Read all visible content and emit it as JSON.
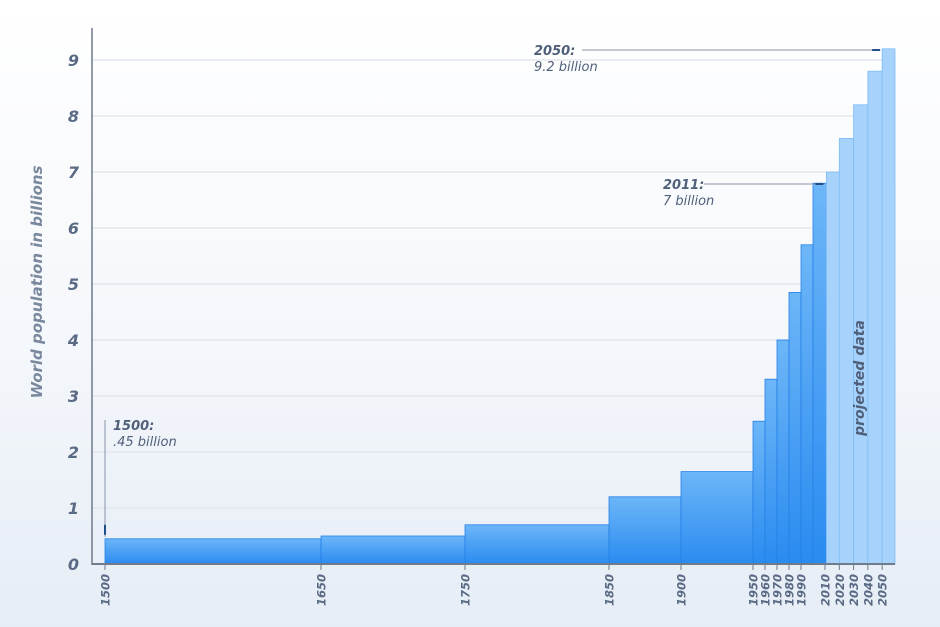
{
  "chart_data": {
    "type": "bar",
    "title": "",
    "ylabel": "World population in billions",
    "ylim": [
      0,
      9.5
    ],
    "grid": true,
    "y_ticks": [
      0,
      1,
      2,
      3,
      4,
      5,
      6,
      7,
      8,
      9
    ],
    "x_ticks": [
      1500,
      1650,
      1750,
      1850,
      1900,
      1950,
      1960,
      1970,
      1980,
      1990,
      2010,
      2020,
      2030,
      2040,
      2050
    ],
    "x_range": [
      1491,
      2059
    ],
    "series": [
      {
        "bars": [
          {
            "start": 1500,
            "end": 1650,
            "value": 0.45
          },
          {
            "start": 1650,
            "end": 1750,
            "value": 0.5
          },
          {
            "start": 1750,
            "end": 1850,
            "value": 0.7
          },
          {
            "start": 1850,
            "end": 1900,
            "value": 1.2
          },
          {
            "start": 1900,
            "end": 1950,
            "value": 1.65
          },
          {
            "start": 1950,
            "end": 1960,
            "value": 2.55
          },
          {
            "start": 1960,
            "end": 1970,
            "value": 3.3
          },
          {
            "start": 1970,
            "end": 1980,
            "value": 4.0
          },
          {
            "start": 1980,
            "end": 1990,
            "value": 4.85
          },
          {
            "start": 1990,
            "end": 2000,
            "value": 5.7
          },
          {
            "start": 2000,
            "end": 2011,
            "value": 6.8
          }
        ]
      },
      {
        "projected": true,
        "bars": [
          {
            "start": 2011,
            "end": 2020,
            "value": 7.0
          },
          {
            "start": 2020,
            "end": 2030,
            "value": 7.6
          },
          {
            "start": 2030,
            "end": 2040,
            "value": 8.2
          },
          {
            "start": 2040,
            "end": 2050,
            "value": 8.8
          },
          {
            "start": 2050,
            "end": 2059,
            "value": 9.2
          }
        ]
      }
    ],
    "projected_label": "projected data",
    "annotations": [
      {
        "year": "1500:",
        "value": ".45 billion",
        "x": 1500,
        "y": 0.45
      },
      {
        "year": "2011:",
        "value": "7 billion",
        "x": 2011,
        "y": 6.8
      },
      {
        "year": "2050:",
        "value": "9.2 billion",
        "x": 2050,
        "y": 9.2
      }
    ],
    "colors": {
      "bar_top": "#6db6f8",
      "bar_bottom": "#2a8bf0",
      "bar_stroke": "#2380e6",
      "projected": "#a6d2fb",
      "projected_stroke": "#7fbcf6",
      "grid": "#dfe4ea",
      "axis": "#6f7a8a",
      "marker": "#1f4f86"
    }
  }
}
